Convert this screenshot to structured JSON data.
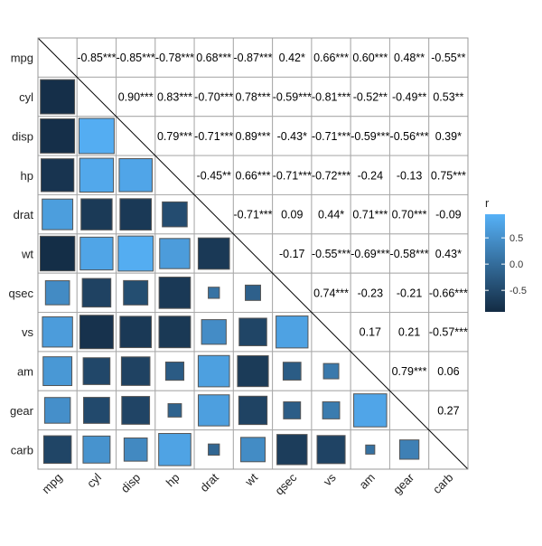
{
  "chart_data": {
    "type": "heatmap",
    "variables": [
      "mpg",
      "cyl",
      "disp",
      "hp",
      "drat",
      "wt",
      "qsec",
      "vs",
      "am",
      "gear",
      "carb"
    ],
    "r": [
      [
        1,
        -0.85,
        -0.85,
        -0.78,
        0.68,
        -0.87,
        0.42,
        0.66,
        0.6,
        0.48,
        -0.55
      ],
      [
        -0.85,
        1,
        0.9,
        0.83,
        -0.7,
        0.78,
        -0.59,
        -0.81,
        -0.52,
        -0.49,
        0.53
      ],
      [
        -0.85,
        0.9,
        1,
        0.79,
        -0.71,
        0.89,
        -0.43,
        -0.71,
        -0.59,
        -0.56,
        0.39
      ],
      [
        -0.78,
        0.83,
        0.79,
        1,
        -0.45,
        0.66,
        -0.71,
        -0.72,
        -0.24,
        -0.13,
        0.75
      ],
      [
        0.68,
        -0.7,
        -0.71,
        -0.45,
        1,
        -0.71,
        0.09,
        0.44,
        0.71,
        0.7,
        -0.09
      ],
      [
        -0.87,
        0.78,
        0.89,
        0.66,
        -0.71,
        1,
        -0.17,
        -0.55,
        -0.69,
        -0.58,
        0.43
      ],
      [
        0.42,
        -0.59,
        -0.43,
        -0.71,
        0.09,
        -0.17,
        1,
        0.74,
        -0.23,
        -0.21,
        -0.66
      ],
      [
        0.66,
        -0.81,
        -0.71,
        -0.72,
        0.44,
        -0.55,
        0.74,
        1,
        0.17,
        0.21,
        -0.57
      ],
      [
        0.6,
        -0.52,
        -0.59,
        -0.24,
        0.71,
        -0.69,
        -0.23,
        0.17,
        1,
        0.79,
        0.06
      ],
      [
        0.48,
        -0.49,
        -0.56,
        -0.13,
        0.7,
        -0.58,
        -0.21,
        0.21,
        0.79,
        1,
        0.27
      ],
      [
        -0.55,
        0.53,
        0.39,
        0.75,
        -0.09,
        0.43,
        -0.66,
        -0.57,
        0.06,
        0.27,
        1
      ]
    ],
    "upper_labels": [
      [
        "",
        "-0.85***",
        "-0.85***",
        "-0.78***",
        "0.68***",
        "-0.87***",
        "0.42*",
        "0.66***",
        "0.60***",
        "0.48**",
        "-0.55**"
      ],
      [
        "",
        "",
        "0.90***",
        "0.83***",
        "-0.70***",
        "0.78***",
        "-0.59***",
        "-0.81***",
        "-0.52**",
        "-0.49**",
        "0.53**"
      ],
      [
        "",
        "",
        "",
        "0.79***",
        "-0.71***",
        "0.89***",
        "-0.43*",
        "-0.71***",
        "-0.59***",
        "-0.56***",
        "0.39*"
      ],
      [
        "",
        "",
        "",
        "",
        "-0.45**",
        "0.66***",
        "-0.71***",
        "-0.72***",
        "-0.24",
        "-0.13",
        "0.75***"
      ],
      [
        "",
        "",
        "",
        "",
        "",
        "-0.71***",
        "0.09",
        "0.44*",
        "0.71***",
        "0.70***",
        "-0.09"
      ],
      [
        "",
        "",
        "",
        "",
        "",
        "",
        "-0.17",
        "-0.55***",
        "-0.69***",
        "-0.58***",
        "0.43*"
      ],
      [
        "",
        "",
        "",
        "",
        "",
        "",
        "",
        "0.74***",
        "-0.23",
        "-0.21",
        "-0.66***"
      ],
      [
        "",
        "",
        "",
        "",
        "",
        "",
        "",
        "",
        "0.17",
        "0.21",
        "-0.57***"
      ],
      [
        "",
        "",
        "",
        "",
        "",
        "",
        "",
        "",
        "",
        "0.79***",
        "0.06"
      ],
      [
        "",
        "",
        "",
        "",
        "",
        "",
        "",
        "",
        "",
        "",
        "0.27"
      ],
      [
        "",
        "",
        "",
        "",
        "",
        "",
        "",
        "",
        "",
        "",
        ""
      ]
    ],
    "lower_triangle": "squares sized by |r|, colored by r",
    "legend": {
      "title": "r",
      "position": "right",
      "ticks": [
        0.5,
        0.0,
        -0.5
      ],
      "tick_labels": [
        "0.5",
        "0.0",
        "-0.5"
      ],
      "range": [
        -0.91,
        0.95
      ],
      "low_color": "#132B43",
      "high_color": "#56B1F7"
    },
    "grid": true
  }
}
